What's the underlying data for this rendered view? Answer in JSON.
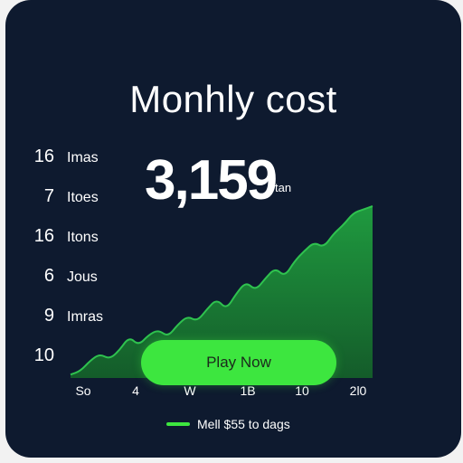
{
  "card": {
    "title": "Monhly cost",
    "big_value": "3,159",
    "big_unit": "tan"
  },
  "chart_data": {
    "type": "area",
    "y_rows": [
      {
        "value": "16",
        "unit": "Imas"
      },
      {
        "value": "7",
        "unit": "Itoes"
      },
      {
        "value": "16",
        "unit": "Itons"
      },
      {
        "value": "6",
        "unit": "Jous"
      },
      {
        "value": "9",
        "unit": "Imras"
      },
      {
        "value": "10",
        "unit": ""
      }
    ],
    "x_ticks": [
      "So",
      "4",
      "W",
      "1B",
      "10",
      "2l0"
    ],
    "series": [
      {
        "color": "#1f8a3a",
        "values": [
          2,
          4,
          10,
          14,
          11,
          16,
          24,
          19,
          25,
          28,
          24,
          31,
          36,
          33,
          40,
          46,
          40,
          49,
          56,
          51,
          58,
          64,
          59,
          68,
          74,
          79,
          76,
          84,
          89,
          96,
          98,
          100
        ]
      }
    ],
    "legend_position": "bottom",
    "legend": "Mell $55 to dags",
    "grid": false
  },
  "button": {
    "label": "Play Now",
    "color": "#3de63f"
  },
  "colors": {
    "background": "#0e1a2f",
    "accent": "#3de63f",
    "area": "#1f8a3a"
  }
}
